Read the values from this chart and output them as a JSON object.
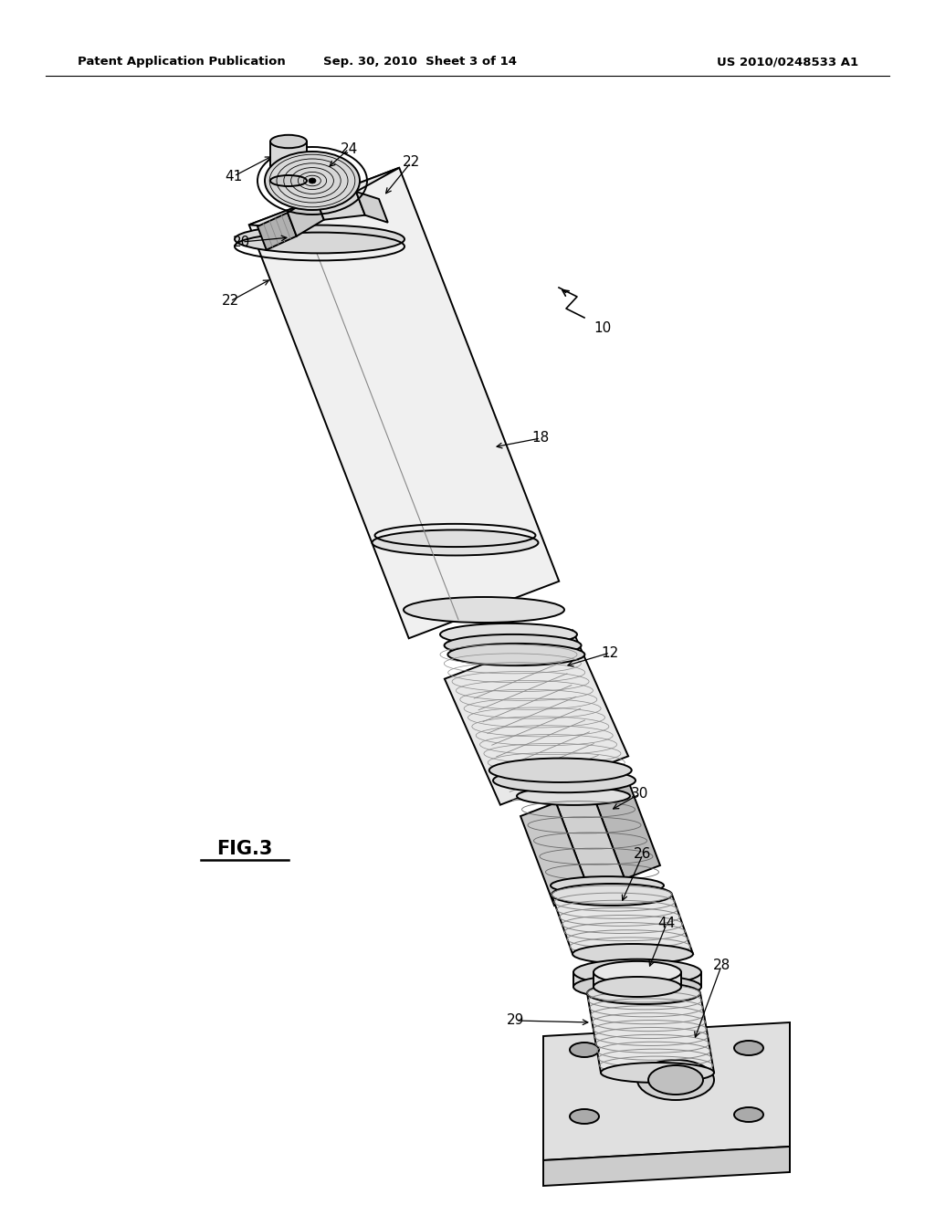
{
  "bg_color": "#ffffff",
  "line_color": "#000000",
  "header_left": "Patent Application Publication",
  "header_mid": "Sep. 30, 2010  Sheet 3 of 14",
  "header_right": "US 2010/0248533 A1",
  "fig_label": "FIG.3",
  "figsize": [
    10.24,
    13.2
  ],
  "dpi": 100
}
